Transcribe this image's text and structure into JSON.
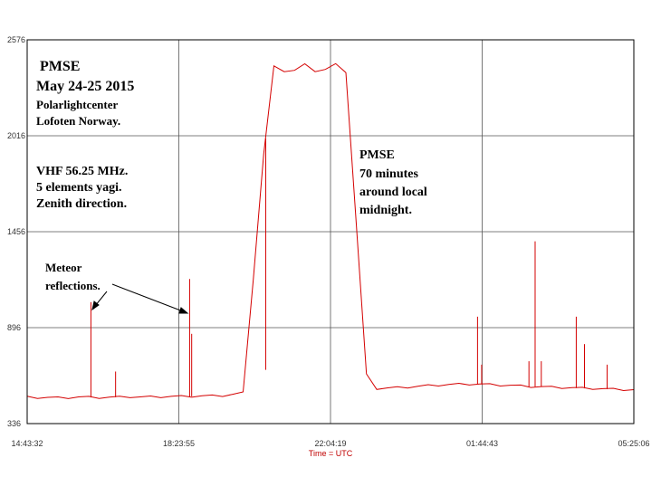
{
  "chart_data": {
    "type": "line",
    "xlabel": "Time = UTC",
    "ylabel": "",
    "title": "",
    "x_ticks": [
      "14:43:32",
      "18:23:55",
      "22:04:19",
      "01:44:43",
      "05:25:06"
    ],
    "y_ticks": [
      336,
      896,
      1456,
      2016,
      2576
    ],
    "ylim": [
      336,
      2576
    ],
    "grid": true,
    "line_color": "#d40000",
    "series": [
      {
        "x": [
          0,
          0.25,
          0.5,
          0.75,
          1,
          1.25,
          1.5,
          1.75,
          2,
          2.25,
          2.5,
          2.75,
          3,
          3.25,
          3.5,
          3.75,
          4,
          4.25,
          4.5,
          4.75,
          5,
          5.25,
          5.5,
          5.75,
          6,
          6.25,
          6.5,
          6.75,
          7,
          7.25,
          7.5,
          7.75,
          8,
          8.25,
          8.5,
          8.75,
          9,
          9.25,
          9.5,
          9.75,
          10,
          10.25,
          10.5,
          10.75,
          11,
          11.25,
          11.5,
          11.75,
          12,
          12.25,
          12.5,
          12.75,
          13,
          13.25,
          13.5,
          13.75,
          14,
          14.25,
          14.5,
          14.75
        ],
        "y": [
          490,
          488,
          487,
          486,
          487,
          490,
          489,
          488,
          489,
          490,
          492,
          490,
          491,
          492,
          493,
          494,
          495,
          496,
          497,
          499,
          505,
          515,
          1200,
          1900,
          2400,
          2410,
          2390,
          2412,
          2410,
          2395,
          2413,
          2405,
          1500,
          620,
          540,
          542,
          545,
          548,
          552,
          557,
          560,
          563,
          565,
          566,
          565,
          563,
          560,
          558,
          555,
          552,
          550,
          548,
          546,
          544,
          542,
          540,
          538,
          536,
          534,
          532
        ]
      }
    ],
    "spikes": [
      {
        "x": 1.55,
        "y": 1045
      },
      {
        "x": 2.15,
        "y": 640
      },
      {
        "x": 3.95,
        "y": 1180
      },
      {
        "x": 4.0,
        "y": 860
      },
      {
        "x": 5.8,
        "y": 650
      },
      {
        "x": 10.95,
        "y": 960
      },
      {
        "x": 11.05,
        "y": 680
      },
      {
        "x": 12.2,
        "y": 700
      },
      {
        "x": 12.35,
        "y": 1400
      },
      {
        "x": 12.5,
        "y": 700
      },
      {
        "x": 13.35,
        "y": 960
      },
      {
        "x": 13.55,
        "y": 800
      },
      {
        "x": 14.1,
        "y": 680
      }
    ],
    "annotations": {
      "title_block": [
        "PMSE",
        "May 24-25 2015",
        "Polarlightcenter",
        "Lofoten Norway."
      ],
      "equipment_block": [
        "VHF  56.25 MHz.",
        "5 elements yagi.",
        "Zenith direction."
      ],
      "pmse_block": [
        "PMSE",
        "70 minutes",
        "around local",
        "midnight."
      ],
      "meteor_block": [
        "Meteor",
        "reflections."
      ]
    }
  }
}
